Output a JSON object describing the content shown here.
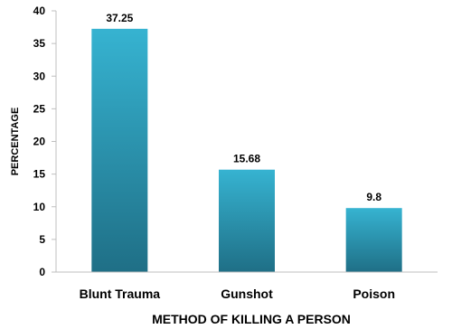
{
  "chart_data": {
    "type": "bar",
    "title": "",
    "xlabel": "METHOD OF KILLING A PERSON",
    "ylabel": "PERCENTAGE",
    "categories": [
      "Blunt Trauma",
      "Gunshot",
      "Poison"
    ],
    "values": [
      37.25,
      15.68,
      9.8
    ],
    "data_labels": [
      "37.25",
      "15.68",
      "9.8"
    ],
    "ylim": [
      0,
      40
    ],
    "yticks": [
      0,
      5,
      10,
      15,
      20,
      25,
      30,
      35,
      40
    ],
    "grid": false,
    "legend": "none",
    "bar_color_top": "#36b3d1",
    "bar_color_bottom": "#1f6f86"
  }
}
